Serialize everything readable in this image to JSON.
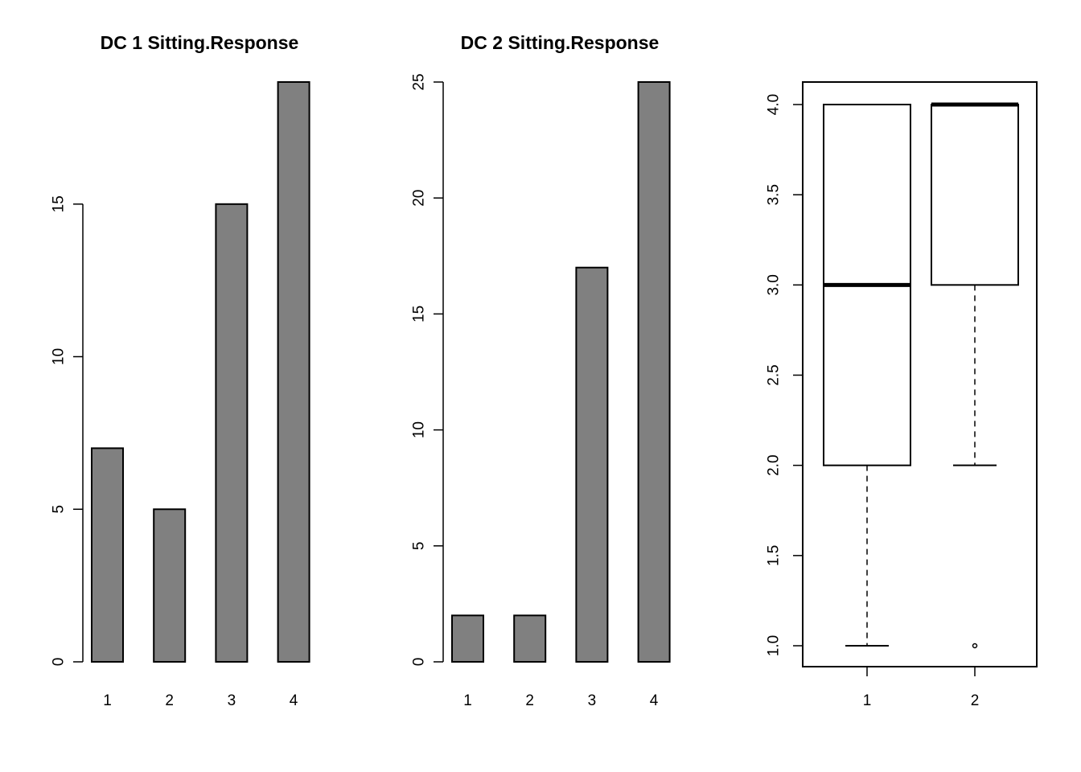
{
  "chart_data": [
    {
      "type": "bar",
      "title": "DC 1 Sitting.Response",
      "categories": [
        "1",
        "2",
        "3",
        "4"
      ],
      "values": [
        7,
        5,
        15,
        19
      ],
      "ylim": [
        0,
        19
      ],
      "yticks": [
        0,
        5,
        10,
        15
      ],
      "bar_color": "#808080",
      "grid": false
    },
    {
      "type": "bar",
      "title": "DC 2 Sitting.Response",
      "categories": [
        "1",
        "2",
        "3",
        "4"
      ],
      "values": [
        2,
        2,
        17,
        25
      ],
      "ylim": [
        0,
        25
      ],
      "yticks": [
        0,
        5,
        10,
        15,
        20,
        25
      ],
      "bar_color": "#808080",
      "grid": false
    },
    {
      "type": "boxplot",
      "categories": [
        "1",
        "2"
      ],
      "boxes": [
        {
          "whisker_low": 1,
          "q1": 2,
          "median": 3,
          "q3": 4,
          "whisker_high": 4,
          "outliers": []
        },
        {
          "whisker_low": 2,
          "q1": 3,
          "median": 4,
          "q3": 4,
          "whisker_high": 4,
          "outliers": [
            1
          ]
        }
      ],
      "ylim": [
        1,
        4
      ],
      "yticks": [
        "1.0",
        "1.5",
        "2.0",
        "2.5",
        "3.0",
        "3.5",
        "4.0"
      ],
      "grid": false
    }
  ]
}
